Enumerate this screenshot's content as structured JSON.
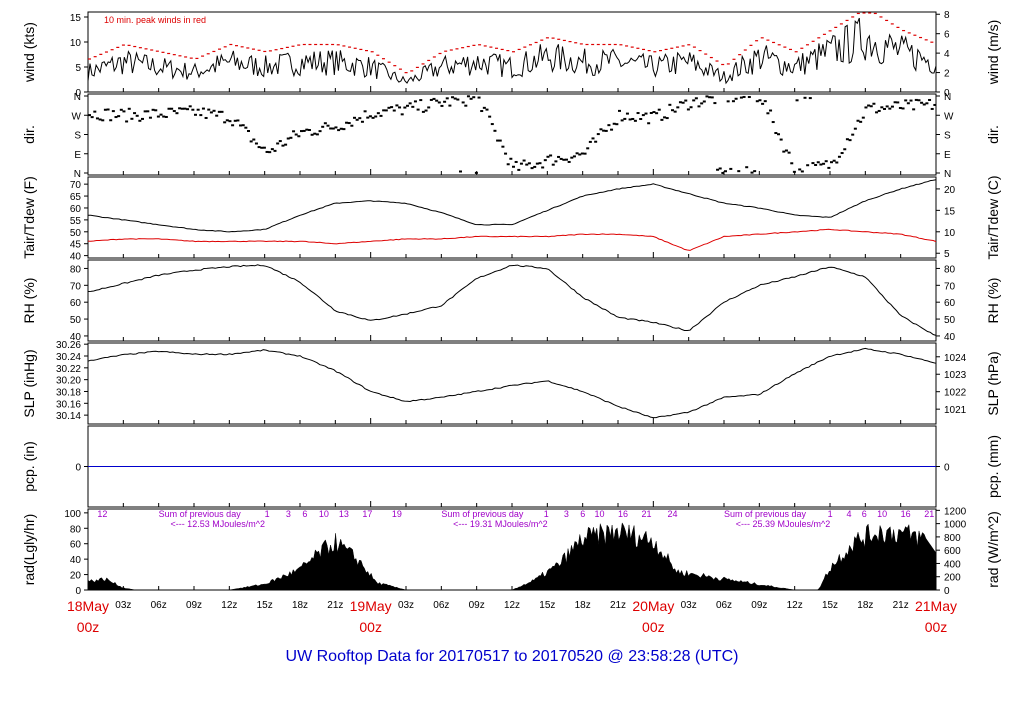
{
  "chart_data": [
    {
      "type": "line",
      "panel": "wind",
      "ylabel_left": "wind (kts)",
      "ylabel_right": "wind (m/s)",
      "annotation": "10 min. peak winds in red",
      "ylim": [
        0,
        16
      ],
      "yticks_left": [
        0,
        5,
        10,
        15
      ],
      "yticks_right": [
        "0",
        "2",
        "4",
        "6",
        "8"
      ],
      "x_hours": [
        0,
        3,
        6,
        9,
        12,
        15,
        18,
        21,
        24,
        27,
        30,
        33,
        36,
        39,
        42,
        45,
        48,
        51,
        54,
        57,
        60,
        63,
        66,
        69,
        72
      ],
      "series": [
        {
          "values": [
            4,
            6,
            5,
            4,
            6,
            5,
            6,
            6,
            5,
            2,
            5,
            6,
            5,
            7,
            6,
            6,
            5,
            6,
            3,
            7,
            5,
            8,
            11,
            8,
            6
          ]
        }
      ]
    },
    {
      "type": "scatter",
      "panel": "dir",
      "ylabel_left": "dir.",
      "ylabel_right": "dir.",
      "yticks_left": [
        "N",
        "E",
        "S",
        "W",
        "N"
      ],
      "yticks_right": [
        "N",
        "E",
        "S",
        "W",
        "N"
      ],
      "x_hours": [
        0,
        3,
        6,
        9,
        12,
        15,
        18,
        21,
        24,
        27,
        30,
        33,
        36,
        39,
        42,
        45,
        48,
        51,
        54,
        57,
        60,
        63,
        66,
        69,
        72
      ],
      "series": [
        {
          "values": [
            280,
            270,
            275,
            285,
            260,
            95,
            190,
            220,
            280,
            300,
            330,
            350,
            20,
            60,
            90,
            270,
            260,
            330,
            355,
            360,
            5,
            40,
            300,
            310,
            320
          ]
        }
      ]
    },
    {
      "type": "line",
      "panel": "temp",
      "ylabel_left": "Tair/Tdew (F)",
      "ylabel_right": "Tair/Tdew (C)",
      "ylim": [
        39,
        73
      ],
      "yticks_left": [
        40,
        45,
        50,
        55,
        60,
        65,
        70
      ],
      "yticks_right": [
        "5",
        "10",
        "15",
        "20"
      ],
      "x_hours": [
        0,
        3,
        6,
        9,
        12,
        15,
        18,
        21,
        24,
        27,
        30,
        33,
        36,
        39,
        42,
        45,
        48,
        51,
        54,
        57,
        60,
        63,
        66,
        69,
        72
      ],
      "series": [
        {
          "name": "Tair",
          "values": [
            57,
            55,
            53,
            51,
            50,
            51,
            57,
            62,
            63,
            62,
            58,
            53,
            53,
            59,
            65,
            68,
            70,
            66,
            62,
            60,
            57,
            56,
            63,
            68,
            72
          ]
        },
        {
          "name": "Tdew",
          "values": [
            46,
            47,
            47,
            46,
            46,
            46,
            46,
            45,
            46,
            47,
            47,
            48,
            48,
            48,
            49,
            49,
            48,
            42,
            48,
            49,
            50,
            51,
            50,
            49,
            46
          ]
        }
      ]
    },
    {
      "type": "line",
      "panel": "rh",
      "ylabel_left": "RH (%)",
      "ylabel_right": "RH (%)",
      "ylim": [
        37,
        85
      ],
      "yticks_left": [
        40,
        50,
        60,
        70,
        80
      ],
      "yticks_right": [
        "40",
        "50",
        "60",
        "70",
        "80"
      ],
      "x_hours": [
        0,
        3,
        6,
        9,
        12,
        15,
        18,
        21,
        24,
        27,
        30,
        33,
        36,
        39,
        42,
        45,
        48,
        51,
        54,
        57,
        60,
        63,
        66,
        69,
        72
      ],
      "series": [
        {
          "values": [
            66,
            71,
            76,
            79,
            81,
            82,
            72,
            55,
            49,
            53,
            58,
            74,
            82,
            80,
            63,
            51,
            48,
            43,
            60,
            70,
            75,
            81,
            75,
            52,
            40
          ]
        }
      ]
    },
    {
      "type": "line",
      "panel": "slp",
      "ylabel_left": "SLP (inHg)",
      "ylabel_right": "SLP (hPa)",
      "ylim": [
        30.125,
        30.262
      ],
      "yticks_left": [
        "30.14",
        "30.16",
        "30.18",
        "30.20",
        "30.22",
        "30.24",
        "30.26"
      ],
      "yticks_right": [
        "1021",
        "1022",
        "1023",
        "1024"
      ],
      "x_hours": [
        0,
        3,
        6,
        9,
        12,
        15,
        18,
        21,
        24,
        27,
        30,
        33,
        36,
        39,
        42,
        45,
        48,
        51,
        54,
        57,
        60,
        63,
        66,
        69,
        72
      ],
      "series": [
        {
          "values": [
            30.232,
            30.242,
            30.248,
            30.243,
            30.243,
            30.25,
            30.24,
            30.215,
            30.18,
            30.163,
            30.17,
            30.18,
            30.19,
            30.198,
            30.18,
            30.155,
            30.135,
            30.145,
            30.17,
            30.175,
            30.21,
            30.24,
            30.252,
            30.243,
            30.228
          ]
        }
      ]
    },
    {
      "type": "line",
      "panel": "pcp",
      "ylabel_left": "pcp. (in)",
      "ylabel_right": "pcp. (mm)",
      "yticks_left": [
        "0"
      ],
      "yticks_right": [
        "0"
      ],
      "x_hours": [
        0,
        72
      ],
      "series": [
        {
          "values": [
            0,
            0
          ]
        }
      ]
    },
    {
      "type": "area",
      "panel": "rad",
      "ylabel_left": "rad(Lgly/hr)",
      "ylabel_right": "rad (W/m^2)",
      "ylim": [
        0,
        105
      ],
      "yticks_left": [
        0,
        20,
        40,
        60,
        80,
        100
      ],
      "yticks_right": [
        "0",
        "200",
        "400",
        "600",
        "800",
        "1000",
        "1200"
      ],
      "x_hours": [
        0,
        1.5,
        3,
        4,
        12,
        15,
        18,
        20,
        21,
        23,
        24.5,
        27,
        36,
        38,
        40,
        42,
        45,
        48,
        50,
        60,
        62,
        63,
        65,
        67,
        69,
        71,
        72
      ],
      "series": [
        {
          "values": [
            12,
            15,
            3,
            0,
            0,
            8,
            28,
            55,
            65,
            40,
            10,
            0,
            0,
            14,
            35,
            70,
            80,
            68,
            25,
            0,
            0,
            30,
            65,
            80,
            78,
            70,
            48
          ]
        }
      ],
      "labels": [
        {
          "text": "12",
          "hour": 0.8
        },
        {
          "text": "Sum of previous day",
          "hour": 6
        },
        {
          "text": "<--- 12.53 MJoules/m^2",
          "hour": 7
        },
        {
          "text": "1",
          "hour": 15
        },
        {
          "text": "3",
          "hour": 16.8
        },
        {
          "text": "6",
          "hour": 18.2
        },
        {
          "text": "10",
          "hour": 19.6
        },
        {
          "text": "13",
          "hour": 21.3
        },
        {
          "text": "17",
          "hour": 23.3
        },
        {
          "text": "19",
          "hour": 25.8
        },
        {
          "text": "Sum of previous day",
          "hour": 30
        },
        {
          "text": "<--- 19.31 MJoules/m^2",
          "hour": 31
        },
        {
          "text": "1",
          "hour": 38.7
        },
        {
          "text": "3",
          "hour": 40.4
        },
        {
          "text": "6",
          "hour": 41.8
        },
        {
          "text": "10",
          "hour": 43
        },
        {
          "text": "16",
          "hour": 45
        },
        {
          "text": "21",
          "hour": 47
        },
        {
          "text": "24",
          "hour": 49.2
        },
        {
          "text": "Sum of previous day",
          "hour": 54
        },
        {
          "text": "<--- 25.39 MJoules/m^2",
          "hour": 55
        },
        {
          "text": "1",
          "hour": 62.8
        },
        {
          "text": "4",
          "hour": 64.4
        },
        {
          "text": "6",
          "hour": 65.7
        },
        {
          "text": "10",
          "hour": 67
        },
        {
          "text": "16",
          "hour": 69
        },
        {
          "text": "21",
          "hour": 71
        }
      ]
    }
  ],
  "x_axis": {
    "hour_ticks": [
      {
        "hour": 3,
        "label": "03z"
      },
      {
        "hour": 6,
        "label": "06z"
      },
      {
        "hour": 9,
        "label": "09z"
      },
      {
        "hour": 12,
        "label": "12z"
      },
      {
        "hour": 15,
        "label": "15z"
      },
      {
        "hour": 18,
        "label": "18z"
      },
      {
        "hour": 21,
        "label": "21z"
      },
      {
        "hour": 27,
        "label": "03z"
      },
      {
        "hour": 30,
        "label": "06z"
      },
      {
        "hour": 33,
        "label": "09z"
      },
      {
        "hour": 36,
        "label": "12z"
      },
      {
        "hour": 39,
        "label": "15z"
      },
      {
        "hour": 42,
        "label": "18z"
      },
      {
        "hour": 45,
        "label": "21z"
      },
      {
        "hour": 51,
        "label": "03z"
      },
      {
        "hour": 54,
        "label": "06z"
      },
      {
        "hour": 57,
        "label": "09z"
      },
      {
        "hour": 60,
        "label": "12z"
      },
      {
        "hour": 63,
        "label": "15z"
      },
      {
        "hour": 66,
        "label": "18z"
      },
      {
        "hour": 69,
        "label": "21z"
      }
    ],
    "day_labels": [
      {
        "hour": 0,
        "date": "18May",
        "time": "00z"
      },
      {
        "hour": 24,
        "date": "19May",
        "time": "00z"
      },
      {
        "hour": 48,
        "date": "20May",
        "time": "00z"
      },
      {
        "hour": 72,
        "date": "21May",
        "time": "00z"
      }
    ]
  },
  "title": "UW Rooftop Data for 20170517  to  20170520 @ 23:58:28  (UTC)",
  "colors": {
    "trace": "#000000",
    "peak": "#dd0000",
    "dew": "#dd0000",
    "precip": "#0000cc",
    "rad_label": "#a000c8",
    "date_label": "#dd0000",
    "title": "#0000cc"
  }
}
